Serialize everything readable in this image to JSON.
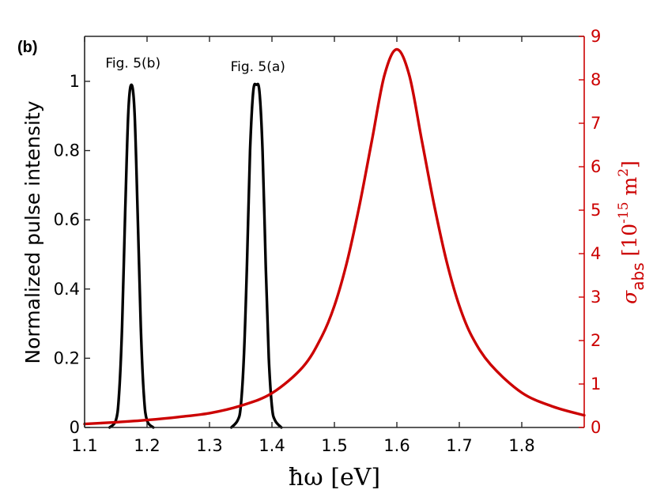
{
  "panel_label": "(b)",
  "colors": {
    "pulse": "#000000",
    "absorption": "#cc0000",
    "axis": "#262626"
  },
  "chart_data": {
    "type": "line",
    "xlabel": "ħω [eV]",
    "ylabel": "Normalized pulse intensity",
    "y2label": {
      "symbol": "σ",
      "subscript": "abs",
      "bracket_open": "[10",
      "exp": "-15",
      "unit": " m",
      "unit_exp": "2",
      "bracket_close": "]"
    },
    "xlim": [
      1.1,
      1.9
    ],
    "ylim": [
      0,
      1.13
    ],
    "y2lim": [
      0,
      9
    ],
    "xticks": [
      "1.1",
      "1.2",
      "1.3",
      "1.4",
      "1.5",
      "1.6",
      "1.7",
      "1.8"
    ],
    "yticks": [
      "0",
      "0.2",
      "0.4",
      "0.6",
      "0.8",
      "1"
    ],
    "y2ticks": [
      "0",
      "1",
      "2",
      "3",
      "4",
      "5",
      "6",
      "7",
      "8",
      "9"
    ],
    "grid": false,
    "annotations": [
      {
        "text": "Fig. 5(b)",
        "x": 1.175,
        "y": 1.04
      },
      {
        "text": "Fig. 5(a)",
        "x": 1.375,
        "y": 1.03
      }
    ],
    "series": [
      {
        "axis": "left",
        "x": [
          1.14,
          1.15,
          1.155,
          1.16,
          1.165,
          1.17,
          1.175,
          1.18,
          1.185,
          1.19,
          1.195,
          1.2,
          1.21
        ],
        "y": [
          0.0,
          0.02,
          0.09,
          0.29,
          0.62,
          0.91,
          0.99,
          0.91,
          0.62,
          0.29,
          0.09,
          0.02,
          0.0
        ]
      },
      {
        "axis": "left",
        "x": [
          1.335,
          1.345,
          1.35,
          1.355,
          1.36,
          1.365,
          1.37,
          1.375,
          1.38,
          1.385,
          1.39,
          1.395,
          1.4,
          1.405,
          1.415
        ],
        "y": [
          0.0,
          0.02,
          0.06,
          0.2,
          0.47,
          0.8,
          0.97,
          0.99,
          0.97,
          0.8,
          0.47,
          0.2,
          0.06,
          0.02,
          0.0
        ]
      },
      {
        "axis": "right",
        "x": [
          1.1,
          1.15,
          1.2,
          1.25,
          1.3,
          1.35,
          1.4,
          1.45,
          1.48,
          1.5,
          1.52,
          1.54,
          1.56,
          1.58,
          1.6,
          1.62,
          1.64,
          1.66,
          1.68,
          1.7,
          1.72,
          1.75,
          1.8,
          1.85,
          1.9
        ],
        "y": [
          0.08,
          0.12,
          0.17,
          0.24,
          0.33,
          0.5,
          0.79,
          1.4,
          2.1,
          2.8,
          3.8,
          5.1,
          6.6,
          8.1,
          8.7,
          8.1,
          6.6,
          5.1,
          3.8,
          2.8,
          2.1,
          1.45,
          0.8,
          0.48,
          0.28
        ]
      }
    ]
  }
}
